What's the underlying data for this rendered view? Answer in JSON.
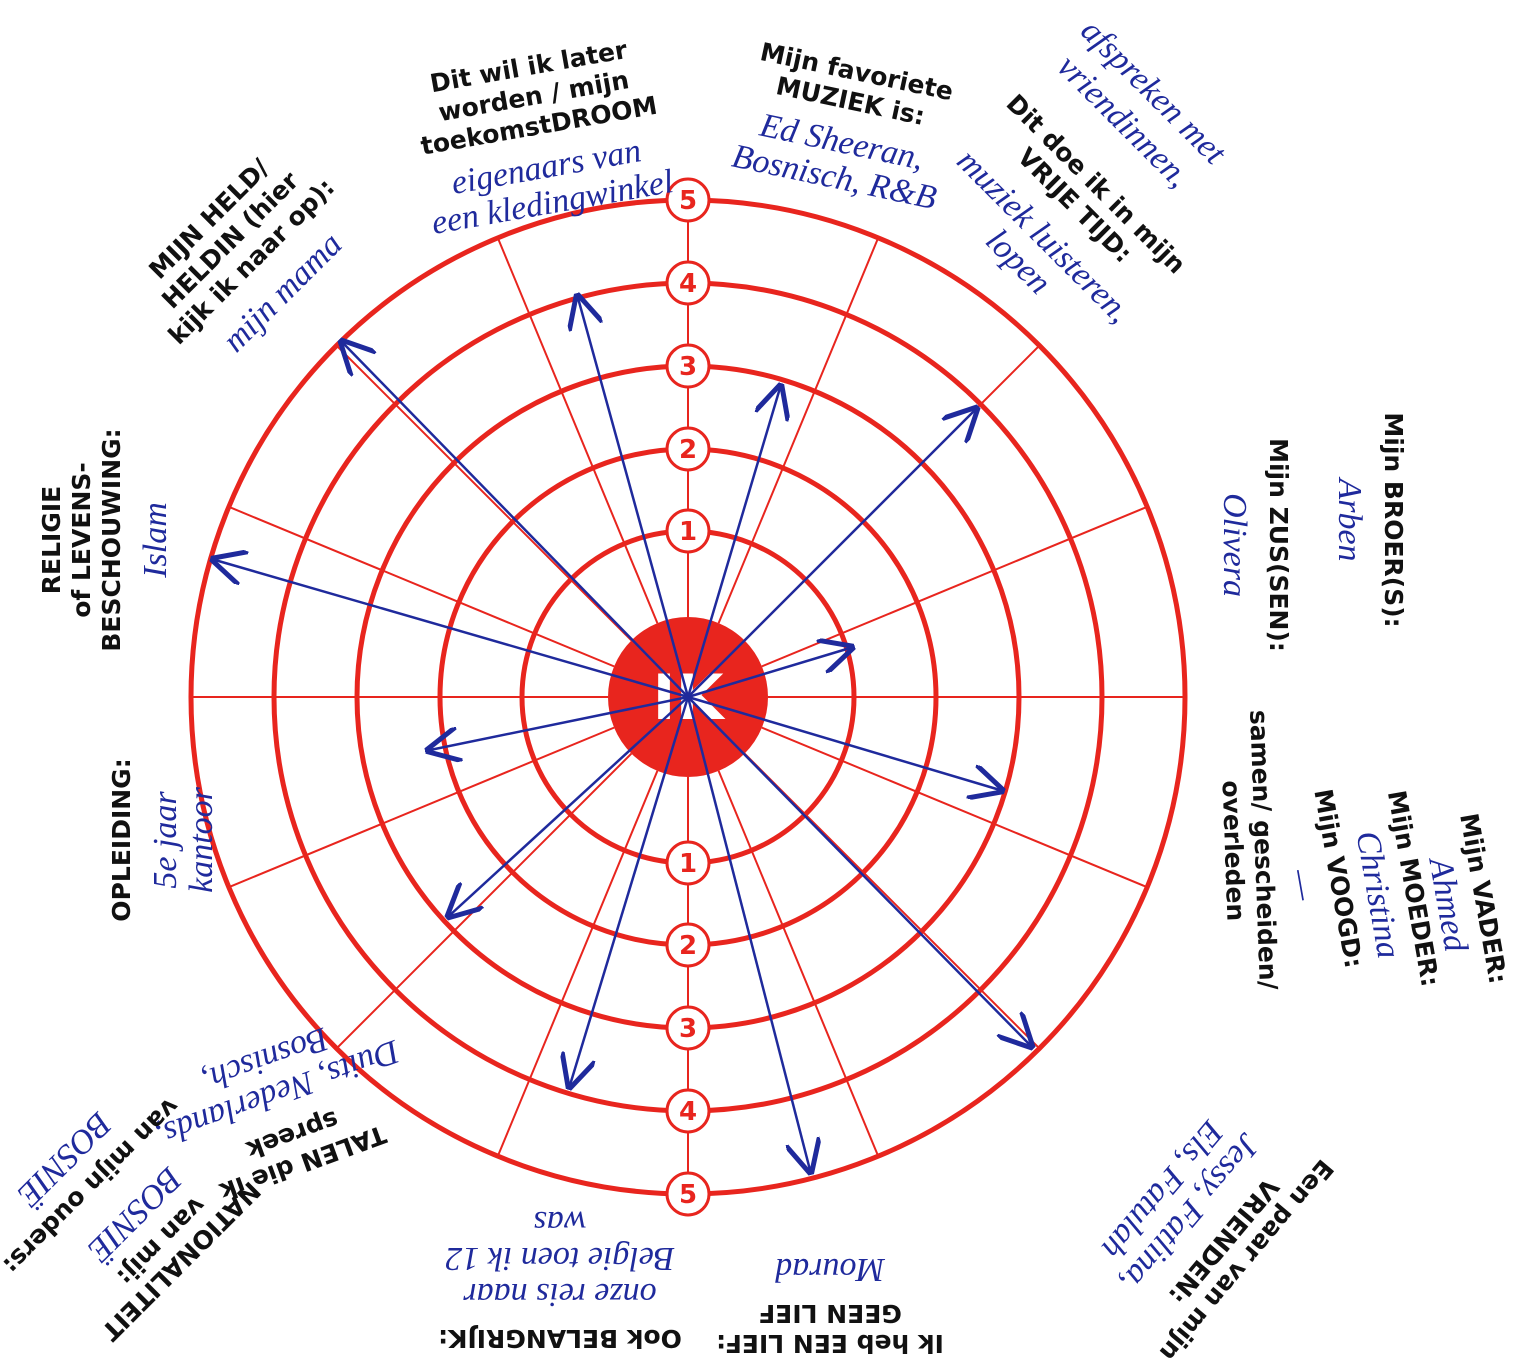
{
  "center": "IK",
  "rings": [
    "1",
    "2",
    "3",
    "4",
    "5"
  ],
  "sections": [
    {
      "label": [
        "MIJN HELD/",
        "HELDIN (hier",
        "kijk ik naar op):"
      ],
      "answer": [
        "mijn mama"
      ]
    },
    {
      "label": [
        "Dit wil ik later",
        "worden / mijn",
        "toekomstDROOM"
      ],
      "answer": [
        "eigenaars van",
        "een kledingwinkel"
      ]
    },
    {
      "label": [
        "Mijn favoriete",
        "MUZIEK is:"
      ],
      "answer": [
        "Ed Sheeran,",
        "Bosnisch, R&B"
      ]
    },
    {
      "label": [
        "Dit doe ik in mijn",
        "VRIJE TIJD:"
      ],
      "answer": [
        "muziek luisteren,",
        "lopen"
      ]
    },
    {
      "label": [],
      "answer": [
        "afspreken met",
        "vriendinnen,"
      ]
    },
    {
      "label": [
        "Mijn BROER(S):"
      ],
      "answer": [
        "Arben"
      ]
    },
    {
      "label": [
        "Mijn ZUS(SEN):"
      ],
      "answer": [
        "Olivera"
      ]
    },
    {
      "label": [
        "Mijn VADER:"
      ],
      "answer": [
        "Ahmed"
      ]
    },
    {
      "label": [
        "Mijn MOEDER:"
      ],
      "answer": [
        "Christina"
      ]
    },
    {
      "label": [
        "Mijn VOOGD:"
      ],
      "answer": [
        "—"
      ]
    },
    {
      "label": [
        "samen/ gescheiden/",
        "overleden"
      ],
      "answer": []
    },
    {
      "label": [
        "Een paar van mijn",
        "VRIENDEN:"
      ],
      "answer": [
        "Jessy, Fatlina,",
        "Els, Fatulah"
      ]
    },
    {
      "label": [
        "Ik heb EEN LIEF:",
        "GEEN LIEF"
      ],
      "answer": [
        "Mourad"
      ]
    },
    {
      "label": [
        "Ook BELANGRIJK:"
      ],
      "answer": [
        "onze reis naar",
        "Belgie toen ik 12",
        "was"
      ]
    },
    {
      "label": [
        "TALEN die ik",
        "spreek"
      ],
      "answer": [
        "Duits, Nederlands,",
        "Bosnisch,"
      ]
    },
    {
      "label": [
        "NATIONALITEIT",
        "van mij:"
      ],
      "answer": [
        "BOSNIË"
      ]
    },
    {
      "label": [
        "van mijn ouders:"
      ],
      "answer": [
        "BOSNIË"
      ]
    },
    {
      "label": [
        "OPLEIDING:"
      ],
      "answer": [
        "5e jaar",
        "kantoor"
      ]
    },
    {
      "label": [
        "RELIGIE",
        "of LEVENS-",
        "BESCHOUWING:"
      ],
      "answer": [
        "Islam"
      ]
    }
  ]
}
